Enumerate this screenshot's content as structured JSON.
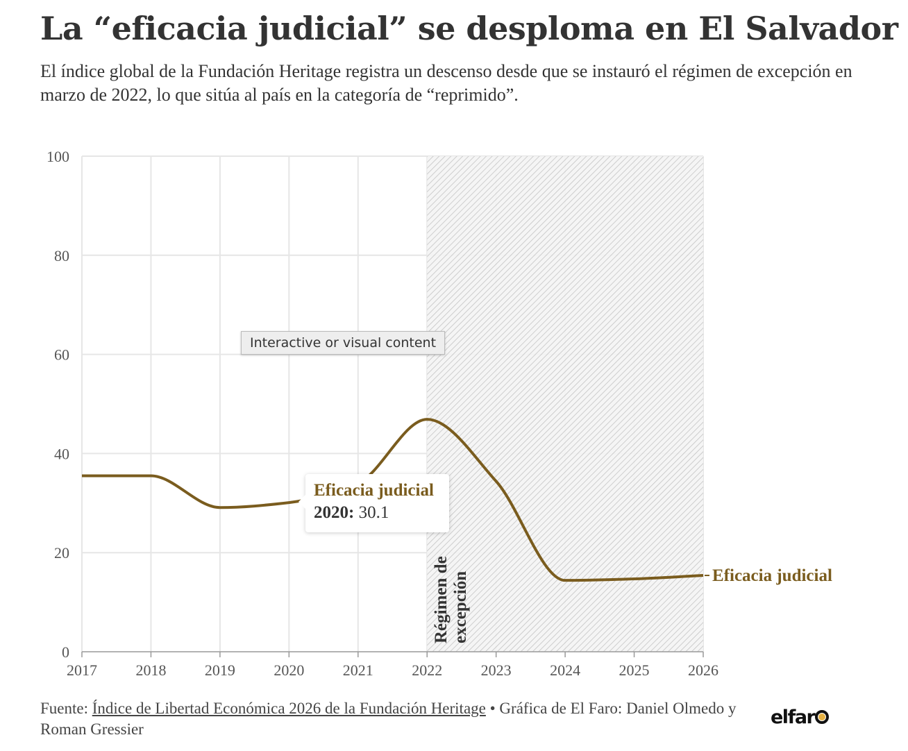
{
  "title": "La “eficacia judicial” se desploma en El Salvador",
  "subtitle": "El índice global de la Fundación Heritage registra un descenso desde que se instauró el régimen de excepción en marzo de 2022, lo que sitúa al país en la categoría de “reprimido”.",
  "overlay_label": "Interactive or visual content",
  "tooltip": {
    "series": "Eficacia judicial",
    "year": "2020:",
    "value": "30.1"
  },
  "footer": {
    "prefix": "Fuente: ",
    "source_link": "Índice de Libertad Económica 2026 de la Fundación Heritage",
    "credits": " • Gráfica de El Faro: Daniel Olmedo y Roman Gressier"
  },
  "logo": "elfaro",
  "chart_data": {
    "type": "line",
    "title": "",
    "xlabel": "",
    "ylabel": "",
    "x": [
      2017,
      2018,
      2019,
      2020,
      2021,
      2022,
      2023,
      2024,
      2025,
      2026
    ],
    "series": [
      {
        "name": "Eficacia judicial",
        "values": [
          35.5,
          35.5,
          29.1,
          30.1,
          34.0,
          46.9,
          34.4,
          14.4,
          14.7,
          15.4
        ],
        "color": "#7a5c1e"
      }
    ],
    "ylim": [
      0,
      100
    ],
    "xlim": [
      2017,
      2026
    ],
    "yticks": [
      "0",
      "20",
      "40",
      "60",
      "80",
      "100"
    ],
    "xticks": [
      "2017",
      "2018",
      "2019",
      "2020",
      "2021",
      "2022",
      "2023",
      "2024",
      "2025",
      "2026"
    ],
    "grid": true,
    "shaded_region": {
      "from": 2022,
      "to": 2026,
      "label_lines": [
        "Régimen de",
        "excepción"
      ],
      "pattern": "diagonal-hatch"
    },
    "legend": "inline-right"
  }
}
